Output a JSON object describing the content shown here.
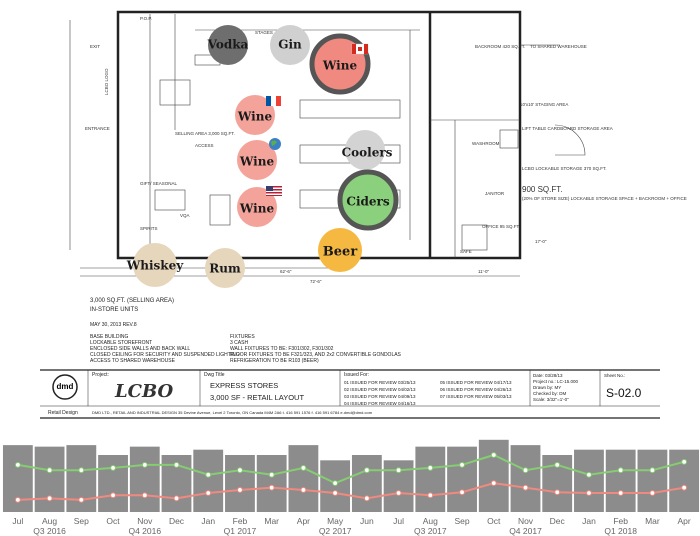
{
  "plan": {
    "labels": [
      "P.O.P.",
      "STAGES",
      "EXIT",
      "ENTRANCE",
      "SELLING AREA 3,000 SQ.FT.",
      "ACCESS",
      "GIFT/ SEASONAL",
      "SPIRITS",
      "VQA",
      "LCBO LOGO",
      "BACKROOM 420 SQ.FT.",
      "TO SHARED WAREHOUSE",
      "10'x10' STAGING AREA",
      "LIFT TABLE CARDBOARD STORAGE AREA",
      "WASHROOM",
      "LCBO LOCKABLE STORAGE 370 SQ.FT.",
      "900 SQ.FT.",
      "(20% OF STORE SIZE) LOCKABLE STORAGE SPACE + BACKROOM + OFFICE",
      "JANITOR",
      "OFFICE 95 SQ.FT.",
      "SAFE",
      "62'-6\"",
      "72'-6\"",
      "11'-0\"",
      "17'-0\""
    ],
    "bubbles": [
      "Vodka",
      "Gin",
      "Wine",
      "Wine",
      "Wine",
      "Coolers",
      "Wine",
      "Ciders",
      "Beer",
      "Whiskey",
      "Rum"
    ]
  },
  "notes": {
    "area": "3,000 SQ.FT. (SELLING AREA)",
    "units": "IN-STORE UNITS",
    "date": "MAY 30, 2013 REV.8",
    "base_building": [
      "BASE BUILDING",
      "LOCKABLE STOREFRONT",
      "ENCLOSED SIDE WALLS AND BACK WALL",
      "CLOSED CEILING FOR SECURITY AND SUSPENDED LIGHTING",
      "ACCESS TO SHARED WAREHOUSE"
    ],
    "fixtures": [
      "FIXTURES",
      "3 CASH",
      "WALL FIXTURES TO BE: F301/302, F301/302",
      "FLOOR FIXTURES TO BE F321/323, AND 2x2 CONVERTIBLE GONDOLAS",
      "REFRIGERATION TO BE R103 (BEER)"
    ]
  },
  "title_block": {
    "logo": "dmd",
    "logo_caption": "Retail Design",
    "project_label": "Project:",
    "project": "LCBO",
    "dwg_title_label": "Dwg Title",
    "dwg_title": [
      "EXPRESS STORES",
      "3,000 SF - RETAIL LAYOUT"
    ],
    "issued_label": "Issued For:",
    "issues": [
      "01  ISSUED FOR REVIEW  03/25/13",
      "02  ISSUED FOR REVIEW  04/02/13",
      "03  ISSUED FOR REVIEW  04/09/13",
      "04  ISSUED FOR REVIEW  04/16/13",
      "05  ISSUED FOR REVIEW  04/17/13",
      "06  ISSUED FOR REVIEW  04/26/13",
      "07  ISSUED FOR REVIEW  05/03/13"
    ],
    "meta": [
      "Date:  03/28/13",
      "Project no.:  LC-15.000",
      "Drawn by:  MY",
      "Checked by:  DM",
      "Scale:  3/32\"=1'-0\""
    ],
    "sheet_label": "Sheet No.:",
    "sheet": "S-02.0",
    "footer": "DMD LTD.,  RETAIL AND INDUSTRIAL DESIGN  35 Devine Avenue, Level 2 Toronto, ON Canada M4M 2A6  t. 416 591 1576  f. 416 591 6784  e.dmd@dmd.com"
  },
  "chart_data": {
    "type": "bar",
    "categories": [
      "Jul",
      "Aug",
      "Sep",
      "Oct",
      "Nov",
      "Dec",
      "Jan",
      "Feb",
      "Mar",
      "Apr",
      "May",
      "Jun",
      "Jul",
      "Aug",
      "Sep",
      "Oct",
      "Nov",
      "Dec",
      "Jan",
      "Feb",
      "Mar",
      "Apr"
    ],
    "quarters": [
      "Q3 2016",
      "Q4 2016",
      "Q1 2017",
      "Q2 2017",
      "Q3 2017",
      "Q4 2017",
      "Q1 2018"
    ],
    "ylim": [
      0,
      100
    ],
    "series": [
      {
        "type": "bar",
        "color": "#8c8c8c",
        "values": [
          88,
          86,
          88,
          75,
          86,
          75,
          82,
          75,
          75,
          88,
          68,
          75,
          68,
          86,
          86,
          95,
          88,
          75,
          82,
          82,
          82,
          82
        ]
      },
      {
        "type": "line",
        "color": "#86cc72",
        "values": [
          62,
          55,
          55,
          58,
          62,
          62,
          49,
          55,
          49,
          58,
          38,
          55,
          55,
          58,
          62,
          75,
          55,
          62,
          49,
          55,
          55,
          66
        ]
      },
      {
        "type": "line",
        "color": "#f08a80",
        "values": [
          16,
          18,
          16,
          22,
          22,
          18,
          25,
          29,
          32,
          29,
          25,
          18,
          25,
          22,
          26,
          38,
          32,
          26,
          25,
          25,
          25,
          32
        ]
      }
    ]
  }
}
